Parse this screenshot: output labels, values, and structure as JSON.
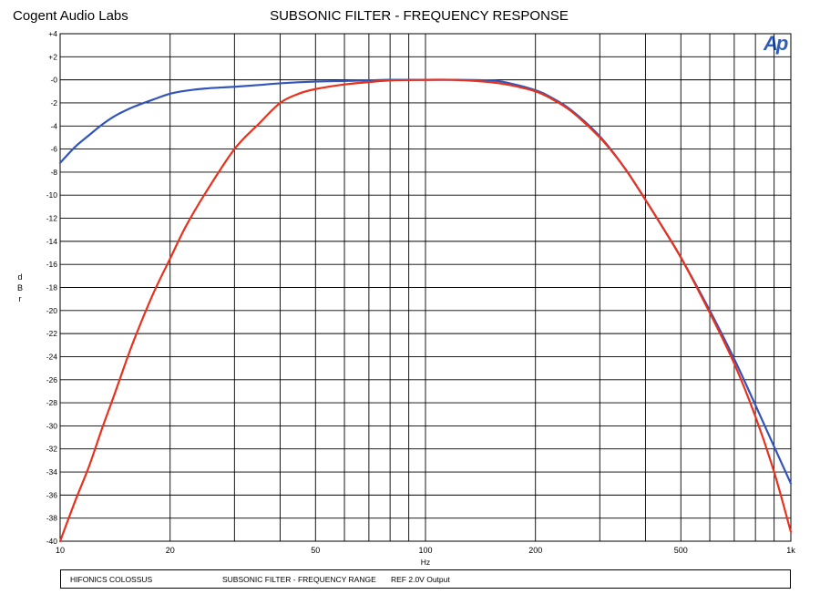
{
  "header": {
    "company": "Cogent Audio Labs",
    "title": "SUBSONIC FILTER  -  FREQUENCY RESPONSE",
    "logo_text": "Ap"
  },
  "footer": {
    "device": "HIFONICS COLOSSUS",
    "test": "SUBSONIC FILTER  -  FREQUENCY RANGE",
    "reference": "REF 2.0V Output"
  },
  "colors": {
    "series_blue": "#3355bb",
    "series_red": "#e8321e",
    "logo": "#2f5db7"
  },
  "chart_data": {
    "type": "line",
    "title": "SUBSONIC FILTER  -  FREQUENCY RESPONSE",
    "xlabel": "Hz",
    "ylabel": [
      "d",
      "B",
      "r"
    ],
    "x_scale": "log",
    "xlim": [
      10,
      1000
    ],
    "ylim": [
      -40,
      4
    ],
    "grid": true,
    "x_major_ticks": [
      10,
      20,
      50,
      100,
      200,
      500,
      1000
    ],
    "x_tick_labels": [
      "10",
      "20",
      "50",
      "100",
      "200",
      "500",
      "1k"
    ],
    "y_ticks": [
      4,
      2,
      0,
      -2,
      -4,
      -6,
      -8,
      -10,
      -12,
      -14,
      -16,
      -18,
      -20,
      -22,
      -24,
      -26,
      -28,
      -30,
      -32,
      -34,
      -36,
      -38,
      -40
    ],
    "y_tick_labels": [
      "+4",
      "+2",
      "-0",
      "-2",
      "-4",
      "-6",
      "-8",
      "-10",
      "-12",
      "-14",
      "-16",
      "-18",
      "-20",
      "-22",
      "-24",
      "-26",
      "-28",
      "-30",
      "-32",
      "-34",
      "-36",
      "-38",
      "-40"
    ],
    "series": [
      {
        "color": "#3355bb",
        "points": [
          [
            10,
            -7.2
          ],
          [
            11,
            -5.8
          ],
          [
            12,
            -4.8
          ],
          [
            13,
            -3.9
          ],
          [
            14,
            -3.2
          ],
          [
            15,
            -2.7
          ],
          [
            16,
            -2.3
          ],
          [
            18,
            -1.7
          ],
          [
            20,
            -1.2
          ],
          [
            22,
            -0.95
          ],
          [
            25,
            -0.75
          ],
          [
            30,
            -0.6
          ],
          [
            35,
            -0.45
          ],
          [
            40,
            -0.3
          ],
          [
            50,
            -0.15
          ],
          [
            60,
            -0.1
          ],
          [
            70,
            -0.05
          ],
          [
            80,
            0
          ],
          [
            100,
            0
          ],
          [
            120,
            0
          ],
          [
            150,
            -0.05
          ],
          [
            170,
            -0.3
          ],
          [
            200,
            -0.9
          ],
          [
            220,
            -1.5
          ],
          [
            250,
            -2.6
          ],
          [
            300,
            -4.9
          ],
          [
            350,
            -7.6
          ],
          [
            400,
            -10.4
          ],
          [
            450,
            -13.0
          ],
          [
            500,
            -15.4
          ],
          [
            600,
            -20.0
          ],
          [
            700,
            -24.2
          ],
          [
            800,
            -28.2
          ],
          [
            900,
            -31.8
          ],
          [
            1000,
            -35.0
          ]
        ]
      },
      {
        "color": "#e8321e",
        "points": [
          [
            10,
            -40
          ],
          [
            11,
            -36.5
          ],
          [
            12,
            -33.5
          ],
          [
            13,
            -30.3
          ],
          [
            14,
            -27.5
          ],
          [
            15,
            -24.8
          ],
          [
            16,
            -22.4
          ],
          [
            18,
            -18.5
          ],
          [
            20,
            -15.5
          ],
          [
            22,
            -12.8
          ],
          [
            25,
            -9.8
          ],
          [
            30,
            -6.0
          ],
          [
            35,
            -3.8
          ],
          [
            40,
            -2.0
          ],
          [
            45,
            -1.2
          ],
          [
            50,
            -0.8
          ],
          [
            60,
            -0.4
          ],
          [
            70,
            -0.2
          ],
          [
            80,
            -0.05
          ],
          [
            100,
            0
          ],
          [
            120,
            0
          ],
          [
            150,
            -0.2
          ],
          [
            170,
            -0.45
          ],
          [
            200,
            -1.0
          ],
          [
            220,
            -1.6
          ],
          [
            250,
            -2.7
          ],
          [
            300,
            -5.0
          ],
          [
            350,
            -7.6
          ],
          [
            400,
            -10.4
          ],
          [
            450,
            -13.0
          ],
          [
            500,
            -15.4
          ],
          [
            600,
            -20.2
          ],
          [
            700,
            -24.6
          ],
          [
            800,
            -29.2
          ],
          [
            900,
            -34.0
          ],
          [
            1000,
            -39.2
          ]
        ]
      }
    ]
  }
}
